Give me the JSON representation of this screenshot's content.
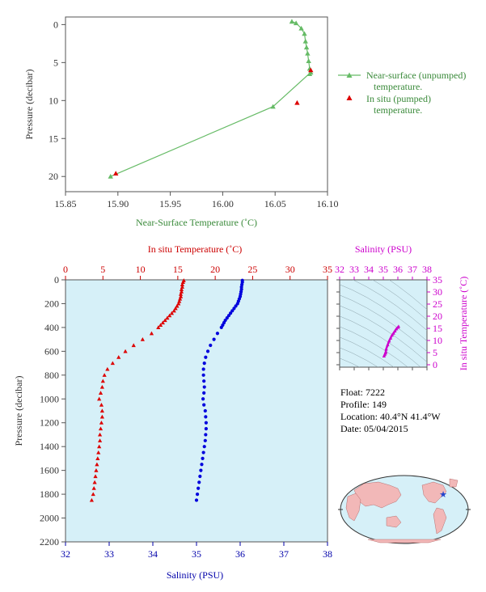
{
  "chart_data": [
    {
      "type": "line",
      "xlabel": "Near-Surface Temperature (˚C)",
      "ylabel": "Pressure (decibar)",
      "xlim": [
        15.85,
        16.1
      ],
      "ylim": [
        22,
        -1
      ],
      "xticks": [
        15.85,
        15.9,
        15.95,
        16.0,
        16.05,
        16.1
      ],
      "yticks": [
        0,
        5,
        10,
        15,
        20
      ],
      "legend": "right",
      "colors": {
        "near_surface": "#66bb66",
        "in_situ": "#dd0000"
      },
      "series": [
        {
          "name": "Near-surface (unpumped) temperature.",
          "x": [
            16.066,
            16.07,
            16.075,
            16.078,
            16.079,
            16.08,
            16.081,
            16.082,
            16.083,
            16.083,
            16.084,
            16.048,
            15.893
          ],
          "y": [
            -0.4,
            -0.2,
            0.5,
            1.2,
            2.2,
            3.0,
            3.8,
            4.8,
            5.8,
            6.5,
            6.3,
            10.8,
            20.0
          ]
        },
        {
          "name": "In situ (pumped) temperature.",
          "x": [
            16.084,
            16.071,
            15.898
          ],
          "y": [
            6.0,
            10.3,
            19.6
          ]
        }
      ]
    },
    {
      "type": "scatter",
      "xlabel_top": "In situ Temperature (˚C)",
      "xlabel_bottom": "Salinity (PSU)",
      "ylabel": "Pressure (decibar)",
      "temp_lim": [
        0,
        35
      ],
      "sal_lim": [
        32,
        38
      ],
      "ylim": [
        2200,
        0
      ],
      "temp_ticks": [
        0,
        5,
        10,
        15,
        20,
        25,
        30,
        35
      ],
      "sal_ticks": [
        32,
        33,
        34,
        35,
        36,
        37,
        38
      ],
      "yticks": [
        0,
        200,
        400,
        600,
        800,
        1000,
        1200,
        1400,
        1600,
        1800,
        2000,
        2200
      ],
      "colors": {
        "temperature": "#dd0000",
        "salinity": "#0000dd",
        "background": "#d6f0f8"
      },
      "temperature_profile": {
        "p": [
          5,
          20,
          40,
          60,
          80,
          100,
          120,
          140,
          160,
          180,
          200,
          220,
          240,
          260,
          280,
          300,
          320,
          340,
          360,
          380,
          400,
          450,
          500,
          550,
          600,
          650,
          700,
          750,
          800,
          850,
          900,
          950,
          1000,
          1050,
          1100,
          1150,
          1200,
          1250,
          1300,
          1350,
          1400,
          1450,
          1500,
          1550,
          1600,
          1650,
          1700,
          1750,
          1800,
          1850
        ],
        "t": [
          15.8,
          15.7,
          15.6,
          15.6,
          15.5,
          15.5,
          15.4,
          15.4,
          15.3,
          15.2,
          15.1,
          14.9,
          14.7,
          14.5,
          14.2,
          13.9,
          13.6,
          13.3,
          13.0,
          12.7,
          12.4,
          11.5,
          10.3,
          9.1,
          8.0,
          7.1,
          6.3,
          5.6,
          5.2,
          5.0,
          4.9,
          4.7,
          4.5,
          4.8,
          4.9,
          4.9,
          4.8,
          4.7,
          4.6,
          4.6,
          4.5,
          4.4,
          4.3,
          4.2,
          4.1,
          4.0,
          3.9,
          3.8,
          3.7,
          3.5
        ]
      },
      "salinity_profile": {
        "p": [
          5,
          20,
          40,
          60,
          80,
          100,
          120,
          140,
          160,
          180,
          200,
          220,
          240,
          260,
          280,
          300,
          320,
          340,
          360,
          380,
          400,
          450,
          500,
          550,
          600,
          650,
          700,
          750,
          800,
          850,
          900,
          950,
          1000,
          1050,
          1100,
          1150,
          1200,
          1250,
          1300,
          1350,
          1400,
          1450,
          1500,
          1550,
          1600,
          1650,
          1700,
          1750,
          1800,
          1850
        ],
        "s": [
          36.05,
          36.05,
          36.04,
          36.03,
          36.03,
          36.02,
          36.01,
          36.0,
          35.98,
          35.96,
          35.94,
          35.9,
          35.86,
          35.82,
          35.78,
          35.74,
          35.7,
          35.66,
          35.63,
          35.6,
          35.57,
          35.48,
          35.4,
          35.32,
          35.26,
          35.21,
          35.18,
          35.16,
          35.16,
          35.17,
          35.18,
          35.17,
          35.15,
          35.17,
          35.2,
          35.21,
          35.22,
          35.22,
          35.21,
          35.2,
          35.18,
          35.16,
          35.14,
          35.12,
          35.1,
          35.08,
          35.06,
          35.04,
          35.02,
          35.0
        ]
      }
    },
    {
      "type": "scatter",
      "title": "Salinity (PSU)",
      "xlabel": "Salinity (PSU)",
      "ylabel": "In situ Temperature (˚C)",
      "xlim": [
        32,
        38
      ],
      "ylim": [
        -1,
        35
      ],
      "xticks": [
        32,
        33,
        34,
        35,
        36,
        37,
        38
      ],
      "yticks": [
        0,
        5,
        10,
        15,
        20,
        25,
        30,
        35
      ],
      "colors": {
        "points": "#cc00cc",
        "background": "#d6f0f8"
      },
      "x": [
        36.05,
        36.0,
        35.9,
        35.8,
        35.7,
        35.6,
        35.5,
        35.4,
        35.3,
        35.2,
        35.17,
        35.15,
        35.1,
        35.05
      ],
      "y": [
        15.8,
        15.4,
        14.8,
        13.9,
        13.0,
        12.2,
        11.0,
        9.8,
        8.2,
        6.5,
        5.3,
        4.8,
        4.2,
        3.6
      ]
    }
  ],
  "float_info": {
    "float": "Float:  7222",
    "profile": "Profile:  149",
    "location": "Location:  40.4°N  41.4°W",
    "date": "Date:  05/04/2015"
  },
  "map": {
    "marker_icon": "star-icon",
    "marker_color": "#2244cc",
    "land_color": "#f2b8b8",
    "ocean_color": "#d6f0f8"
  }
}
